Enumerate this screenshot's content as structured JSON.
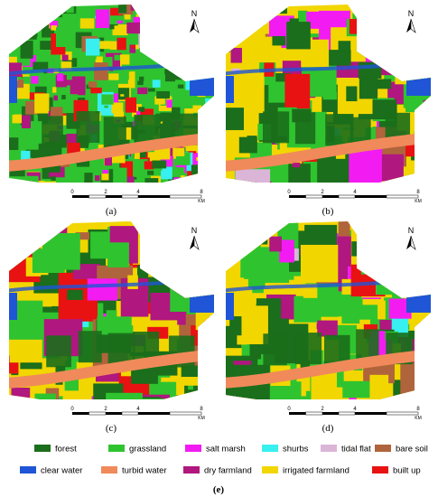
{
  "panels": [
    {
      "label": "(a)",
      "north": "N",
      "scale": [
        "0",
        "2",
        "4",
        "8"
      ],
      "unit": "KM"
    },
    {
      "label": "(b)",
      "north": "N",
      "scale": [
        "0",
        "2",
        "4",
        "8"
      ],
      "unit": "KM"
    },
    {
      "label": "(c)",
      "north": "N",
      "scale": [
        "0",
        "2",
        "4",
        "8"
      ],
      "unit": "KM"
    },
    {
      "label": "(d)",
      "north": "N",
      "scale": [
        "0",
        "2",
        "4",
        "8"
      ],
      "unit": "KM"
    }
  ],
  "legend": {
    "caption": "(e)",
    "items": [
      {
        "name": "forest",
        "color": "#1b6e1b"
      },
      {
        "name": "grassland",
        "color": "#2fc42f"
      },
      {
        "name": "salt marsh",
        "color": "#f21cf2"
      },
      {
        "name": "shurbs",
        "color": "#38f0f0"
      },
      {
        "name": "tidal flat",
        "color": "#dbb5d8"
      },
      {
        "name": "bare soil",
        "color": "#b0643c"
      },
      {
        "name": "clear water",
        "color": "#1f55d6"
      },
      {
        "name": "turbid water",
        "color": "#f08a5a"
      },
      {
        "name": "dry farmland",
        "color": "#b0177f"
      },
      {
        "name": "irrigated  farmland",
        "color": "#f2d600"
      },
      {
        "name": "built up",
        "color": "#e81212"
      }
    ]
  }
}
